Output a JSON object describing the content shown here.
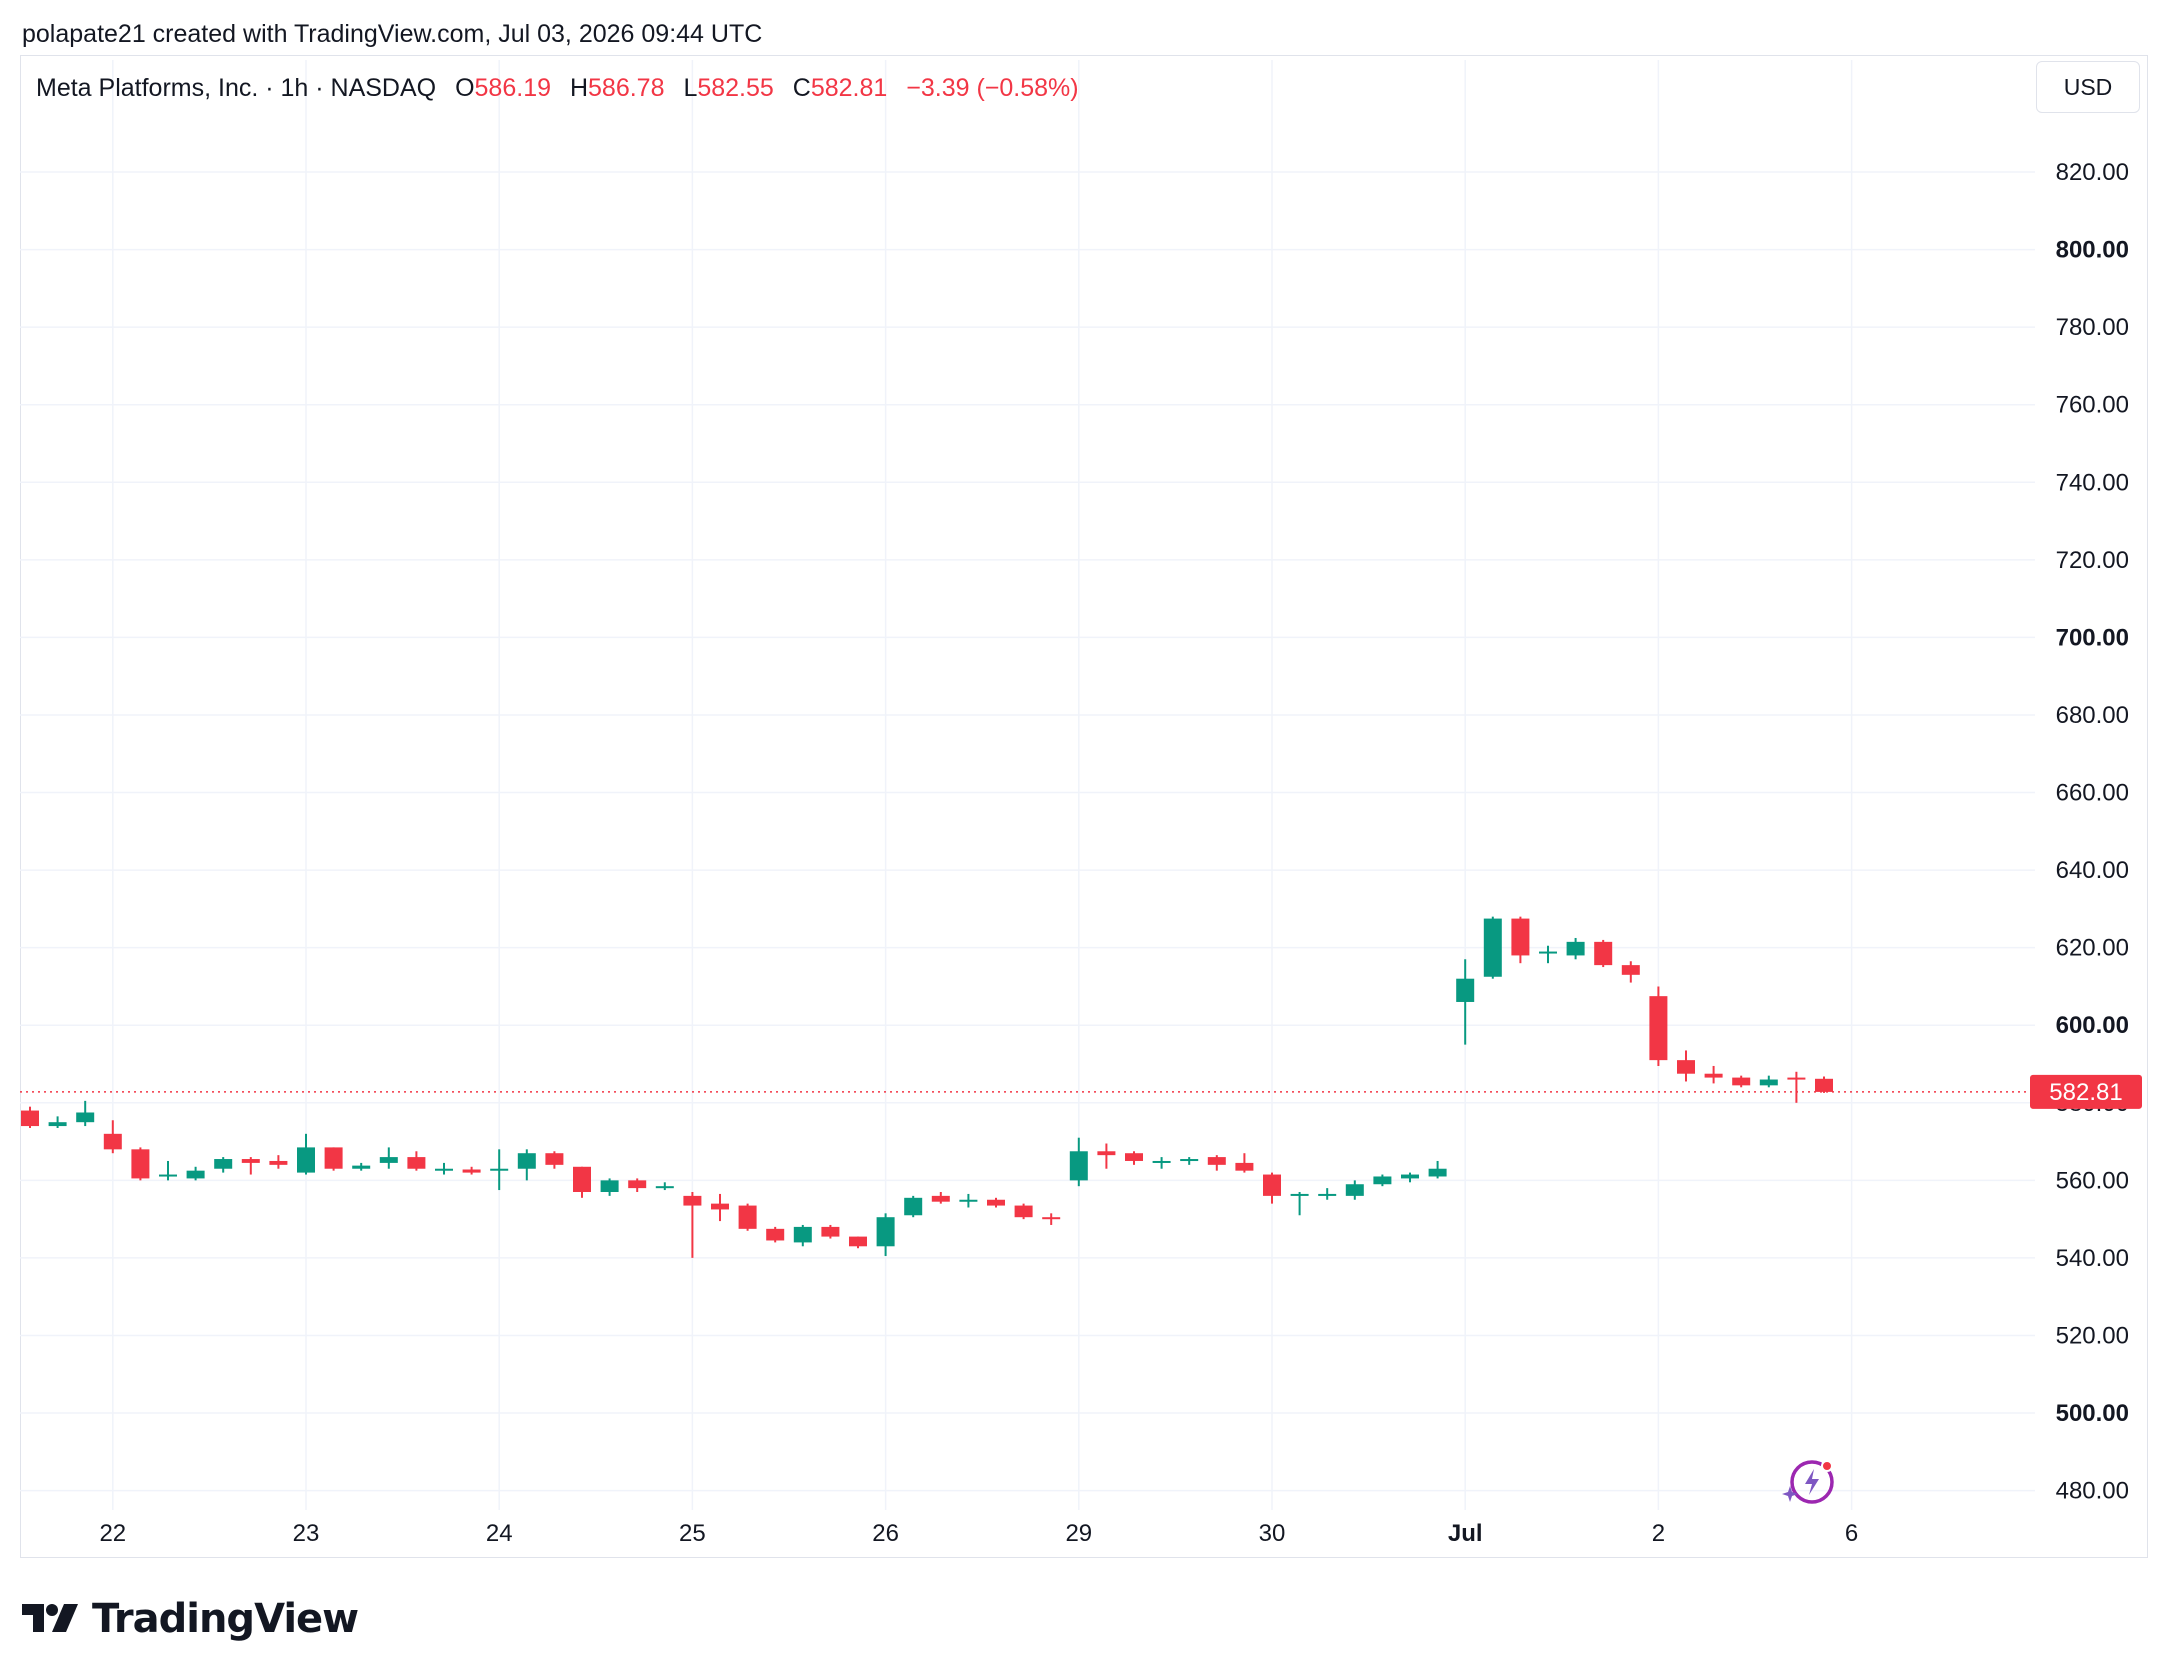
{
  "caption": "polapate21 created with TradingView.com, Jul 03, 2026 09:44 UTC",
  "legend": {
    "symbol": "Meta Platforms, Inc. · 1h · NASDAQ",
    "o_label": "O",
    "o_value": "586.19",
    "h_label": "H",
    "h_value": "586.78",
    "l_label": "L",
    "l_value": "582.55",
    "c_label": "C",
    "c_value": "582.81",
    "change": "−3.39 (−0.58%)"
  },
  "currency": "USD",
  "brand": "TradingView",
  "colors": {
    "up": "#089981",
    "down": "#f23645",
    "grid": "#f0f3fa",
    "text": "#131722"
  },
  "chart_data": {
    "type": "candlestick",
    "ylim": [
      475,
      836
    ],
    "y_ticks": [
      480,
      500,
      520,
      540,
      560,
      580,
      600,
      620,
      640,
      660,
      680,
      700,
      720,
      740,
      760,
      780,
      800,
      820
    ],
    "y_tick_labels": [
      "480.00",
      "500.00",
      "520.00",
      "540.00",
      "560.00",
      "580.00",
      "600.00",
      "620.00",
      "640.00",
      "660.00",
      "680.00",
      "700.00",
      "720.00",
      "740.00",
      "760.00",
      "780.00",
      "800.00",
      "820.00"
    ],
    "y_bold_ticks": [
      500,
      600,
      700,
      800
    ],
    "x_ticks": [
      {
        "label": "22",
        "index": 3
      },
      {
        "label": "23",
        "index": 10
      },
      {
        "label": "24",
        "index": 17
      },
      {
        "label": "25",
        "index": 24
      },
      {
        "label": "26",
        "index": 31
      },
      {
        "label": "29",
        "index": 38
      },
      {
        "label": "30",
        "index": 45
      },
      {
        "label": "Jul",
        "index": 52,
        "bold": true
      },
      {
        "label": "2",
        "index": 59
      },
      {
        "label": "6",
        "index": 66
      }
    ],
    "last_price": "582.81",
    "candles": [
      {
        "o": 578.0,
        "h": 579.0,
        "l": 573.5,
        "c": 574.0
      },
      {
        "o": 574.0,
        "h": 576.5,
        "l": 573.5,
        "c": 575.0
      },
      {
        "o": 575.0,
        "h": 580.5,
        "l": 574.0,
        "c": 577.5
      },
      {
        "o": 572.0,
        "h": 575.5,
        "l": 567.0,
        "c": 568.0
      },
      {
        "o": 568.0,
        "h": 568.5,
        "l": 560.0,
        "c": 560.5
      },
      {
        "o": 561.0,
        "h": 565.0,
        "l": 560.0,
        "c": 561.5
      },
      {
        "o": 560.5,
        "h": 563.5,
        "l": 560.0,
        "c": 562.5
      },
      {
        "o": 563.0,
        "h": 566.0,
        "l": 562.0,
        "c": 565.5
      },
      {
        "o": 565.5,
        "h": 566.0,
        "l": 561.5,
        "c": 564.5
      },
      {
        "o": 565.0,
        "h": 566.5,
        "l": 563.0,
        "c": 564.0
      },
      {
        "o": 562.0,
        "h": 572.0,
        "l": 561.5,
        "c": 568.5
      },
      {
        "o": 568.5,
        "h": 568.5,
        "l": 562.5,
        "c": 563.0
      },
      {
        "o": 563.0,
        "h": 564.5,
        "l": 562.5,
        "c": 563.8
      },
      {
        "o": 564.5,
        "h": 568.5,
        "l": 563.0,
        "c": 566.0
      },
      {
        "o": 566.0,
        "h": 567.5,
        "l": 562.5,
        "c": 563.0
      },
      {
        "o": 562.5,
        "h": 564.5,
        "l": 561.5,
        "c": 563.0
      },
      {
        "o": 562.8,
        "h": 563.5,
        "l": 561.5,
        "c": 562.0
      },
      {
        "o": 562.5,
        "h": 568.0,
        "l": 557.5,
        "c": 563.0
      },
      {
        "o": 563.0,
        "h": 568.0,
        "l": 560.0,
        "c": 567.0
      },
      {
        "o": 567.0,
        "h": 567.5,
        "l": 563.0,
        "c": 564.0
      },
      {
        "o": 563.5,
        "h": 563.5,
        "l": 555.5,
        "c": 557.0
      },
      {
        "o": 557.0,
        "h": 560.5,
        "l": 556.0,
        "c": 560.0
      },
      {
        "o": 560.0,
        "h": 560.5,
        "l": 557.0,
        "c": 558.0
      },
      {
        "o": 558.0,
        "h": 559.5,
        "l": 557.5,
        "c": 558.5
      },
      {
        "o": 556.0,
        "h": 557.0,
        "l": 540.0,
        "c": 553.5
      },
      {
        "o": 554.0,
        "h": 556.5,
        "l": 549.5,
        "c": 552.5
      },
      {
        "o": 553.5,
        "h": 554.0,
        "l": 547.0,
        "c": 547.5
      },
      {
        "o": 547.5,
        "h": 548.0,
        "l": 544.0,
        "c": 544.5
      },
      {
        "o": 544.0,
        "h": 548.5,
        "l": 543.0,
        "c": 548.0
      },
      {
        "o": 548.0,
        "h": 548.5,
        "l": 545.0,
        "c": 545.5
      },
      {
        "o": 545.5,
        "h": 545.5,
        "l": 542.5,
        "c": 543.0
      },
      {
        "o": 543.0,
        "h": 551.5,
        "l": 540.5,
        "c": 550.5
      },
      {
        "o": 551.0,
        "h": 556.0,
        "l": 550.5,
        "c": 555.5
      },
      {
        "o": 556.0,
        "h": 557.0,
        "l": 554.0,
        "c": 554.5
      },
      {
        "o": 554.5,
        "h": 556.5,
        "l": 553.0,
        "c": 555.0
      },
      {
        "o": 555.0,
        "h": 555.5,
        "l": 553.0,
        "c": 553.5
      },
      {
        "o": 553.5,
        "h": 554.0,
        "l": 550.0,
        "c": 550.5
      },
      {
        "o": 550.5,
        "h": 551.5,
        "l": 548.5,
        "c": 550.0
      },
      {
        "o": 560.0,
        "h": 571.0,
        "l": 558.5,
        "c": 567.5
      },
      {
        "o": 567.5,
        "h": 569.5,
        "l": 563.0,
        "c": 566.5
      },
      {
        "o": 567.0,
        "h": 567.5,
        "l": 564.0,
        "c": 565.0
      },
      {
        "o": 564.5,
        "h": 566.0,
        "l": 563.0,
        "c": 565.0
      },
      {
        "o": 565.0,
        "h": 566.0,
        "l": 564.0,
        "c": 565.5
      },
      {
        "o": 566.0,
        "h": 566.5,
        "l": 562.5,
        "c": 564.0
      },
      {
        "o": 564.5,
        "h": 567.0,
        "l": 562.0,
        "c": 562.5
      },
      {
        "o": 561.5,
        "h": 562.0,
        "l": 554.0,
        "c": 556.0
      },
      {
        "o": 556.0,
        "h": 557.0,
        "l": 551.0,
        "c": 556.5
      },
      {
        "o": 556.0,
        "h": 558.0,
        "l": 555.0,
        "c": 556.5
      },
      {
        "o": 556.0,
        "h": 560.0,
        "l": 555.0,
        "c": 559.0
      },
      {
        "o": 559.0,
        "h": 561.5,
        "l": 558.5,
        "c": 561.0
      },
      {
        "o": 560.5,
        "h": 562.0,
        "l": 559.5,
        "c": 561.5
      },
      {
        "o": 561.0,
        "h": 565.0,
        "l": 560.5,
        "c": 563.0
      },
      {
        "o": 606.0,
        "h": 617.0,
        "l": 595.0,
        "c": 612.0
      },
      {
        "o": 612.5,
        "h": 628.0,
        "l": 612.0,
        "c": 627.5
      },
      {
        "o": 627.5,
        "h": 628.0,
        "l": 616.0,
        "c": 618.0
      },
      {
        "o": 619.0,
        "h": 620.5,
        "l": 616.0,
        "c": 619.0
      },
      {
        "o": 618.0,
        "h": 622.5,
        "l": 617.0,
        "c": 621.5
      },
      {
        "o": 621.5,
        "h": 622.0,
        "l": 615.0,
        "c": 615.5
      },
      {
        "o": 615.5,
        "h": 616.5,
        "l": 611.0,
        "c": 613.0
      },
      {
        "o": 607.5,
        "h": 610.0,
        "l": 589.5,
        "c": 591.0
      },
      {
        "o": 591.0,
        "h": 593.5,
        "l": 585.5,
        "c": 587.5
      },
      {
        "o": 587.5,
        "h": 589.5,
        "l": 585.0,
        "c": 586.5
      },
      {
        "o": 586.5,
        "h": 587.0,
        "l": 584.0,
        "c": 584.5
      },
      {
        "o": 584.5,
        "h": 587.0,
        "l": 584.0,
        "c": 586.0
      },
      {
        "o": 586.5,
        "h": 588.0,
        "l": 580.0,
        "c": 586.0
      },
      {
        "o": 586.19,
        "h": 586.78,
        "l": 582.55,
        "c": 582.81
      }
    ]
  }
}
